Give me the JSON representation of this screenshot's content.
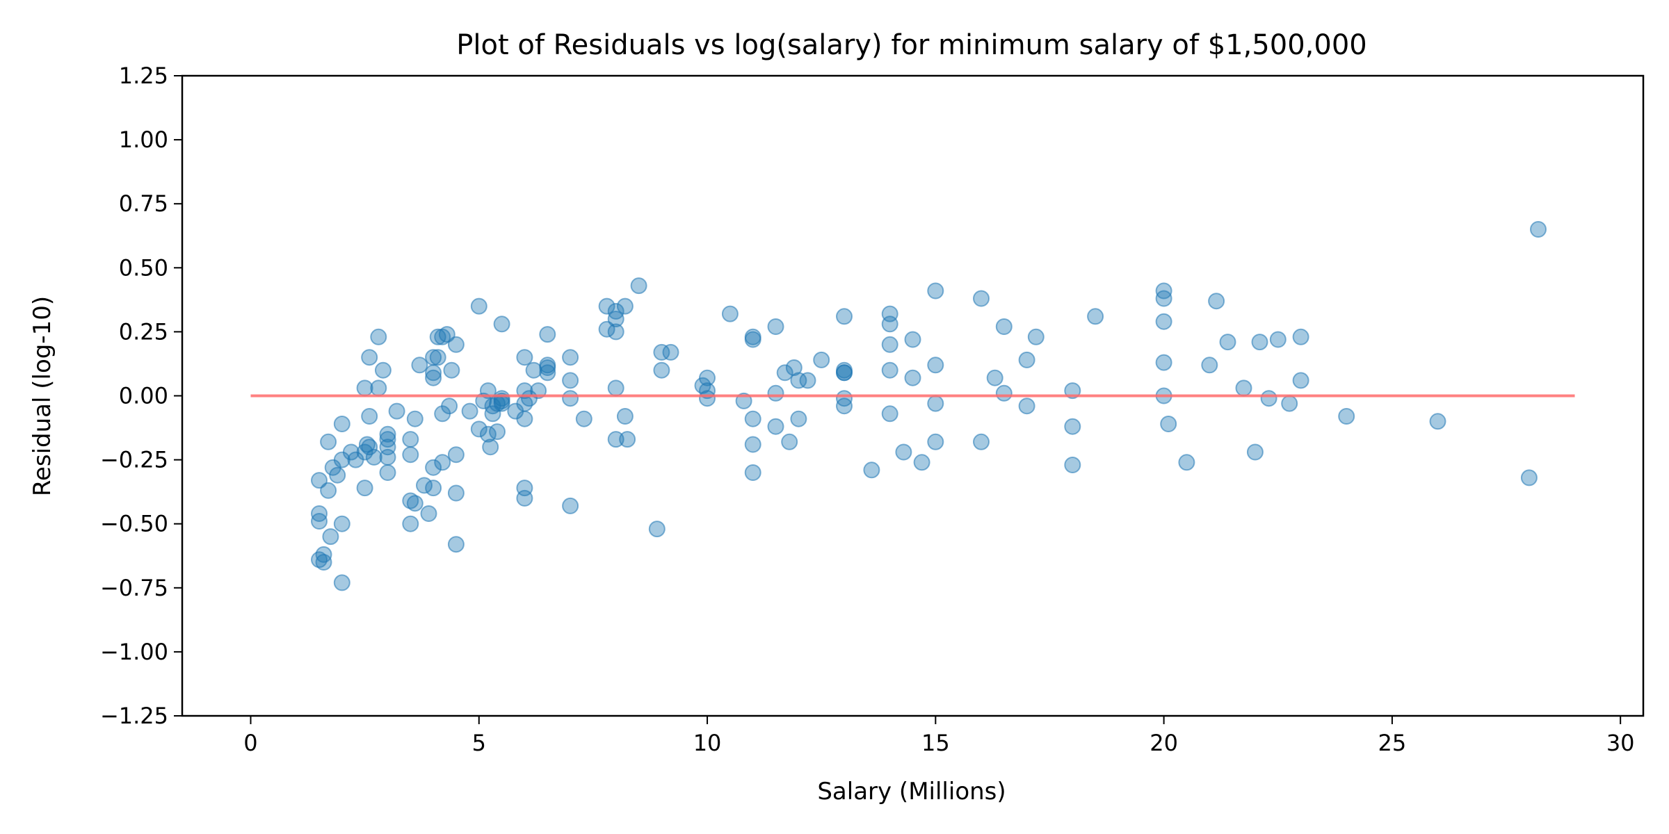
{
  "chart_data": {
    "type": "scatter",
    "title": "Plot of Residuals vs log(salary) for minimum salary of $1,500,000",
    "xlabel": "Salary (Millions)",
    "ylabel": "Residual (log-10)",
    "xlim": [
      -1.5,
      30.5
    ],
    "ylim": [
      -1.25,
      1.25
    ],
    "xticks": [
      0,
      5,
      10,
      15,
      20,
      25,
      30
    ],
    "xtick_labels": [
      "0",
      "5",
      "10",
      "15",
      "20",
      "25",
      "30"
    ],
    "yticks": [
      -1.25,
      -1.0,
      -0.75,
      -0.5,
      -0.25,
      0.0,
      0.25,
      0.5,
      0.75,
      1.0,
      1.25
    ],
    "ytick_labels": [
      "−1.25",
      "−1.00",
      "−0.75",
      "−0.50",
      "−0.25",
      "0.00",
      "0.25",
      "0.50",
      "0.75",
      "1.00",
      "1.25"
    ],
    "grid": false,
    "legend": "none",
    "colors": {
      "points": "#1f77b4",
      "reference_line": "#ff6b6b"
    },
    "reference_line": {
      "x": [
        0,
        29
      ],
      "y": [
        0,
        0
      ]
    },
    "series": [
      {
        "x": [
          1.5,
          1.5,
          1.5,
          1.5,
          1.6,
          1.6,
          1.7,
          1.7,
          1.75,
          1.8,
          1.9,
          2.0,
          2.0,
          2.0,
          2.0,
          2.2,
          2.3,
          2.5,
          2.5,
          2.5,
          2.55,
          2.6,
          2.6,
          2.6,
          2.7,
          2.8,
          2.8,
          2.9,
          3.0,
          3.0,
          3.0,
          3.0,
          3.0,
          3.2,
          3.5,
          3.5,
          3.5,
          3.5,
          3.6,
          3.6,
          3.7,
          3.8,
          3.9,
          4.0,
          4.0,
          4.0,
          4.0,
          4.0,
          4.1,
          4.1,
          4.2,
          4.2,
          4.2,
          4.3,
          4.35,
          4.4,
          4.5,
          4.5,
          4.5,
          4.5,
          4.8,
          5.0,
          5.0,
          5.1,
          5.2,
          5.2,
          5.25,
          5.3,
          5.3,
          5.4,
          5.4,
          5.5,
          5.5,
          5.5,
          5.5,
          5.8,
          6.0,
          6.0,
          6.0,
          6.0,
          6.0,
          6.0,
          6.1,
          6.2,
          6.3,
          6.5,
          6.5,
          6.5,
          6.5,
          7.0,
          7.0,
          7.0,
          7.0,
          7.3,
          7.8,
          7.8,
          8.0,
          8.0,
          8.0,
          8.0,
          8.0,
          8.2,
          8.2,
          8.25,
          8.5,
          8.9,
          9.0,
          9.0,
          9.2,
          9.9,
          10.0,
          10.0,
          10.0,
          10.5,
          10.8,
          11.0,
          11.0,
          11.0,
          11.0,
          11.0,
          11.5,
          11.5,
          11.5,
          11.7,
          11.8,
          11.9,
          12.0,
          12.0,
          12.2,
          12.5,
          13.0,
          13.0,
          13.0,
          13.0,
          13.0,
          13.0,
          13.6,
          14.0,
          14.0,
          14.0,
          14.0,
          14.0,
          14.3,
          14.5,
          14.5,
          14.7,
          15.0,
          15.0,
          15.0,
          15.0,
          16.0,
          16.0,
          16.3,
          16.5,
          16.5,
          17.0,
          17.0,
          17.2,
          18.0,
          18.0,
          18.0,
          18.5,
          20.0,
          20.0,
          20.0,
          20.0,
          20.0,
          20.1,
          20.5,
          21.0,
          21.15,
          21.4,
          21.75,
          22.0,
          22.1,
          22.3,
          22.5,
          22.75,
          23.0,
          23.0,
          24.0,
          26.0,
          28.0,
          28.2
        ],
        "y": [
          -0.33,
          -0.46,
          -0.49,
          -0.64,
          -0.62,
          -0.65,
          -0.18,
          -0.37,
          -0.55,
          -0.28,
          -0.31,
          -0.11,
          -0.25,
          -0.5,
          -0.73,
          -0.22,
          -0.25,
          0.03,
          -0.22,
          -0.36,
          -0.19,
          -0.08,
          -0.2,
          0.15,
          -0.24,
          0.03,
          0.23,
          0.1,
          -0.15,
          -0.17,
          -0.2,
          -0.24,
          -0.3,
          -0.06,
          -0.17,
          -0.23,
          -0.41,
          -0.5,
          -0.09,
          -0.42,
          0.12,
          -0.35,
          -0.46,
          0.15,
          0.09,
          0.07,
          -0.28,
          -0.36,
          0.15,
          0.23,
          0.23,
          -0.07,
          -0.26,
          0.24,
          -0.04,
          0.1,
          0.2,
          -0.23,
          -0.38,
          -0.58,
          -0.06,
          0.35,
          -0.13,
          -0.02,
          0.02,
          -0.15,
          -0.2,
          -0.04,
          -0.07,
          -0.03,
          -0.14,
          0.28,
          -0.01,
          -0.02,
          -0.03,
          -0.06,
          0.15,
          0.02,
          -0.03,
          -0.09,
          -0.36,
          -0.4,
          -0.01,
          0.1,
          0.02,
          0.24,
          0.12,
          0.11,
          0.09,
          0.15,
          0.06,
          -0.01,
          -0.43,
          -0.09,
          0.35,
          0.26,
          0.33,
          0.3,
          0.25,
          0.03,
          -0.17,
          0.35,
          -0.08,
          -0.17,
          0.43,
          -0.52,
          0.17,
          0.1,
          0.17,
          0.04,
          0.07,
          0.02,
          -0.01,
          0.32,
          -0.02,
          0.23,
          0.22,
          -0.09,
          -0.19,
          -0.3,
          0.27,
          0.01,
          -0.12,
          0.09,
          -0.18,
          0.11,
          0.06,
          -0.09,
          0.06,
          0.14,
          0.31,
          0.1,
          0.09,
          -0.01,
          -0.04,
          0.09,
          -0.29,
          0.32,
          0.28,
          0.2,
          0.1,
          -0.07,
          -0.22,
          0.22,
          0.07,
          -0.26,
          0.41,
          0.12,
          -0.03,
          -0.18,
          0.38,
          -0.18,
          0.07,
          0.27,
          0.01,
          0.14,
          -0.04,
          0.23,
          0.02,
          -0.12,
          -0.27,
          0.31,
          0.41,
          0.38,
          0.29,
          0.13,
          0.0,
          -0.11,
          -0.26,
          0.12,
          0.37,
          0.21,
          0.03,
          -0.22,
          0.21,
          -0.01,
          0.22,
          -0.03,
          0.23,
          0.06,
          -0.08,
          -0.1,
          -0.32,
          0.65
        ]
      }
    ]
  }
}
